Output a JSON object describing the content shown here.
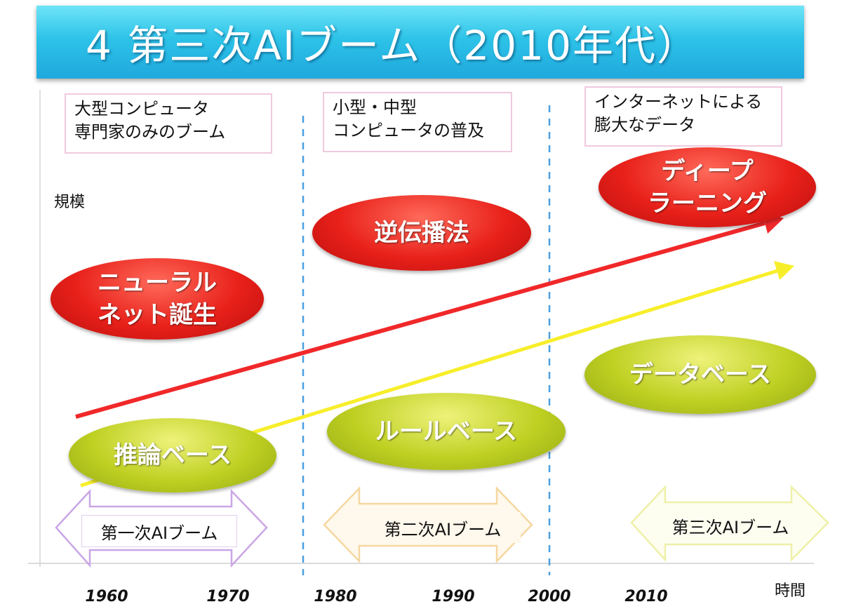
{
  "title": "4 第三次AIブーム（2010年代）",
  "era_notes": [
    {
      "line1": "大型コンピュータ",
      "line2": "専門家のみのブーム"
    },
    {
      "line1": "小型・中型",
      "line2": "コンピュータの普及"
    },
    {
      "line1": "インターネットによる",
      "line2": "膨大なデータ"
    }
  ],
  "y_axis_label": "規模",
  "x_axis_label": "時間",
  "x_ticks": [
    "1960",
    "1970",
    "1980",
    "1990",
    "2000",
    "2010"
  ],
  "red_items": [
    {
      "line1": "ニューラル",
      "line2": "ネット誕生"
    },
    {
      "line1": "逆伝播法",
      "line2": ""
    },
    {
      "line1": "ディープ",
      "line2": "ラーニング"
    }
  ],
  "green_items": [
    "推論ベース",
    "ルールベース",
    "データベース"
  ],
  "booms": [
    "第一次AIブーム",
    "第二次AIブーム",
    "第三次AIブーム"
  ],
  "colors": {
    "title_bar": "#2dc3e8",
    "red_trend": "#f0282a",
    "yellow_trend": "#f7ee2a",
    "divider": "#4a9fe0",
    "boom1_arrow": "#c9a6e6",
    "boom2_arrow": "#f5d7a0",
    "boom3_arrow": "#eef0a8"
  }
}
